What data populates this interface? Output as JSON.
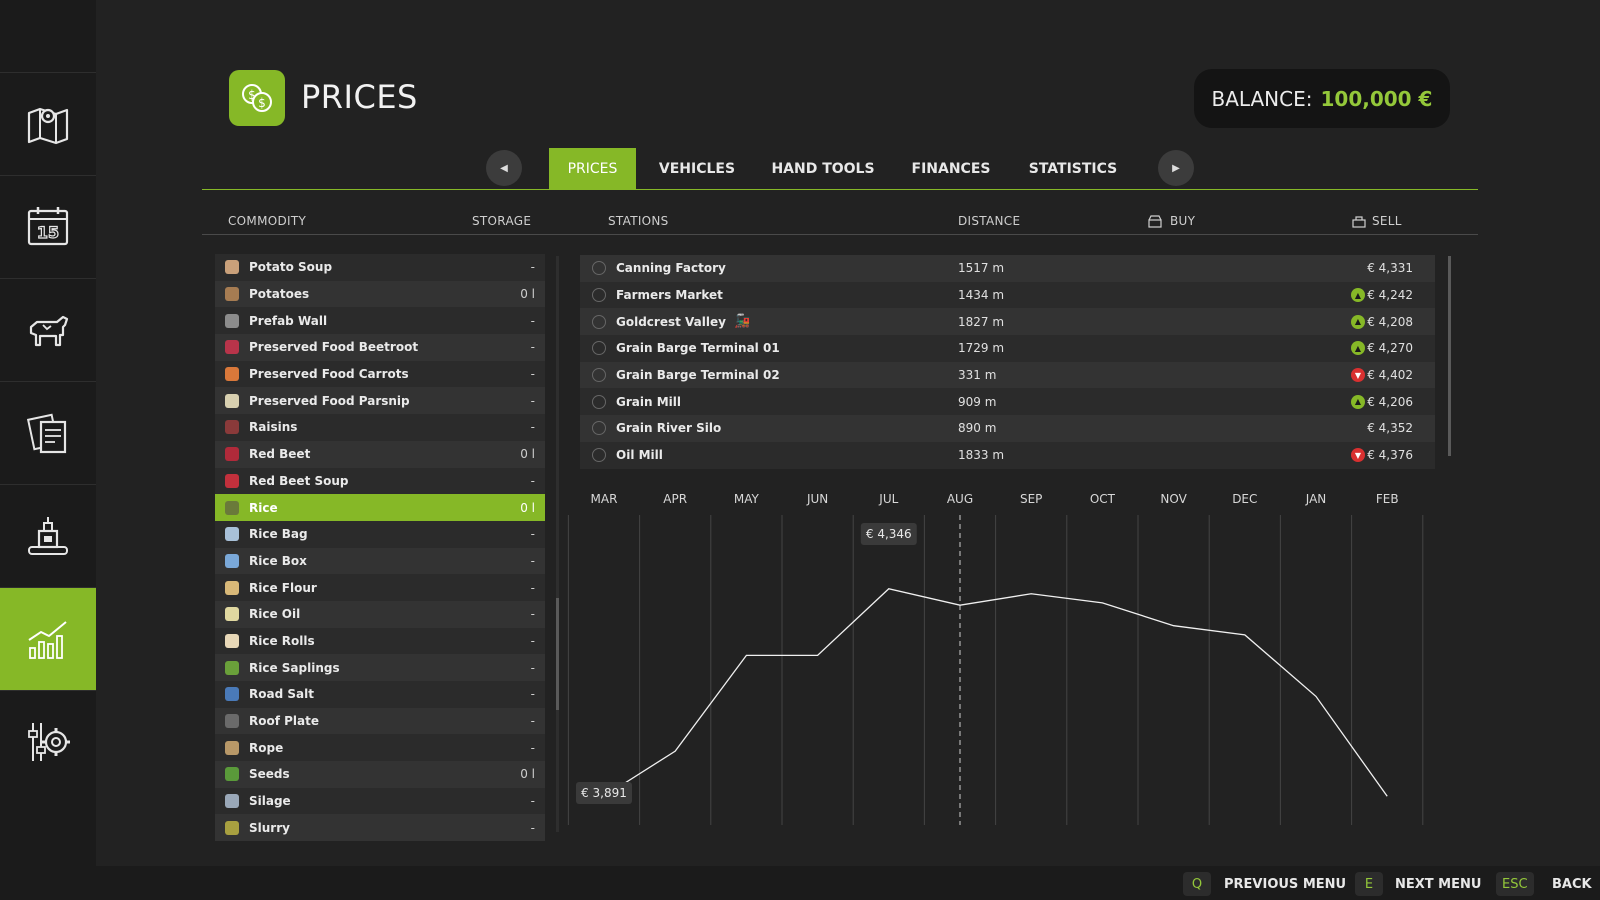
{
  "header": {
    "title": "PRICES",
    "balance_label": "BALANCE:",
    "balance_value": "100,000 €"
  },
  "sidebar": {
    "items": [
      {
        "icon": "map-icon"
      },
      {
        "icon": "calendar-icon",
        "badge": "15"
      },
      {
        "icon": "animals-icon"
      },
      {
        "icon": "contracts-icon"
      },
      {
        "icon": "production-icon"
      },
      {
        "icon": "chart-icon",
        "active": true
      },
      {
        "icon": "settings-icon"
      }
    ]
  },
  "tabs": {
    "prev": "◀",
    "next": "▶",
    "items": [
      "PRICES",
      "VEHICLES",
      "HAND TOOLS",
      "FINANCES",
      "STATISTICS"
    ],
    "active": "PRICES"
  },
  "columns": {
    "commodity": "COMMODITY",
    "storage": "STORAGE",
    "stations": "STATIONS",
    "distance": "DISTANCE",
    "buy": "BUY",
    "sell": "SELL"
  },
  "commodities": [
    {
      "name": "Potato Soup",
      "storage": "-",
      "color": "#c9a07a"
    },
    {
      "name": "Potatoes",
      "storage": "0 l",
      "color": "#a67c52"
    },
    {
      "name": "Prefab Wall",
      "storage": "-",
      "color": "#8c8c8c"
    },
    {
      "name": "Preserved Food Beetroot",
      "storage": "-",
      "color": "#b8344a"
    },
    {
      "name": "Preserved Food Carrots",
      "storage": "-",
      "color": "#d9783a"
    },
    {
      "name": "Preserved Food Parsnip",
      "storage": "-",
      "color": "#d8d0b0"
    },
    {
      "name": "Raisins",
      "storage": "-",
      "color": "#8a3a3a"
    },
    {
      "name": "Red Beet",
      "storage": "0 l",
      "color": "#b02a3a"
    },
    {
      "name": "Red Beet Soup",
      "storage": "-",
      "color": "#c2303c"
    },
    {
      "name": "Rice",
      "storage": "0 l",
      "color": "#6a7a3a",
      "selected": true
    },
    {
      "name": "Rice Bag",
      "storage": "-",
      "color": "#a8c0d8"
    },
    {
      "name": "Rice Box",
      "storage": "-",
      "color": "#7aa8d8"
    },
    {
      "name": "Rice Flour",
      "storage": "-",
      "color": "#d8b878"
    },
    {
      "name": "Rice Oil",
      "storage": "-",
      "color": "#e0d8a0"
    },
    {
      "name": "Rice Rolls",
      "storage": "-",
      "color": "#e8d8b8"
    },
    {
      "name": "Rice Saplings",
      "storage": "-",
      "color": "#6aa03a"
    },
    {
      "name": "Road Salt",
      "storage": "-",
      "color": "#4a7ab8"
    },
    {
      "name": "Roof Plate",
      "storage": "-",
      "color": "#6a6a6a"
    },
    {
      "name": "Rope",
      "storage": "-",
      "color": "#b89868"
    },
    {
      "name": "Seeds",
      "storage": "0 l",
      "color": "#5a9a3a"
    },
    {
      "name": "Silage",
      "storage": "-",
      "color": "#9aa8b8"
    },
    {
      "name": "Slurry",
      "storage": "-",
      "color": "#a8a040"
    }
  ],
  "stations": [
    {
      "name": "Canning Factory",
      "distance": "1517 m",
      "trend": "",
      "price": "€ 4,331"
    },
    {
      "name": "Farmers Market",
      "distance": "1434 m",
      "trend": "up",
      "price": "€ 4,242"
    },
    {
      "name": "Goldcrest Valley",
      "distance": "1827 m",
      "trend": "up",
      "price": "€ 4,208",
      "train": true
    },
    {
      "name": "Grain Barge Terminal 01",
      "distance": "1729 m",
      "trend": "up",
      "price": "€ 4,270"
    },
    {
      "name": "Grain Barge Terminal 02",
      "distance": "331 m",
      "trend": "down",
      "price": "€ 4,402"
    },
    {
      "name": "Grain Mill",
      "distance": "909 m",
      "trend": "up",
      "price": "€ 4,206"
    },
    {
      "name": "Grain River Silo",
      "distance": "890 m",
      "trend": "",
      "price": "€ 4,352"
    },
    {
      "name": "Oil Mill",
      "distance": "1833 m",
      "trend": "down",
      "price": "€ 4,376"
    }
  ],
  "chart_data": {
    "type": "line",
    "categories": [
      "MAR",
      "APR",
      "MAY",
      "JUN",
      "JUL",
      "AUG",
      "SEP",
      "OCT",
      "NOV",
      "DEC",
      "JAN",
      "FEB"
    ],
    "values": [
      3891,
      3990,
      4200,
      4200,
      4346,
      4310,
      4335,
      4315,
      4265,
      4245,
      4110,
      3891
    ],
    "ylim": [
      3850,
      4420
    ],
    "current_month": "AUG",
    "labels": [
      {
        "category": "JUL",
        "text": "€ 4,346"
      },
      {
        "category": "MAR",
        "text": "€ 3,891"
      }
    ],
    "grid": true
  },
  "footer": {
    "prev_key": "Q",
    "prev_label": "PREVIOUS MENU",
    "next_key": "E",
    "next_label": "NEXT MENU",
    "back_key": "ESC",
    "back_label": "BACK"
  }
}
